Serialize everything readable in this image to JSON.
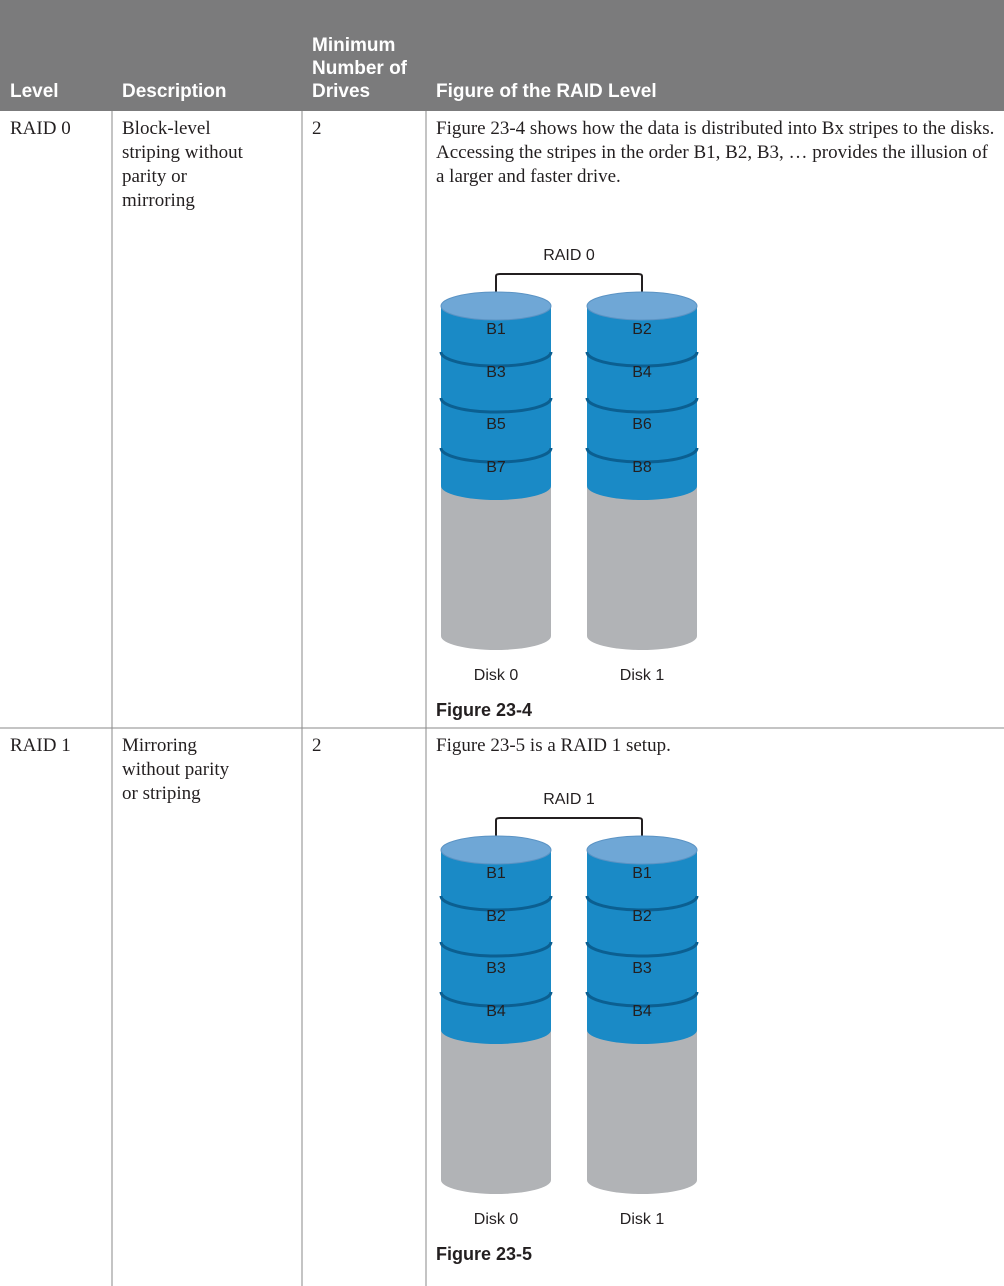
{
  "table": {
    "headers": [
      "Level",
      "Description",
      "Minimum Number of Drives",
      "Figure of the RAID Level"
    ],
    "rows": [
      {
        "level": "RAID 0",
        "description": [
          "Block-level",
          "striping without",
          "parity or",
          "mirroring"
        ],
        "drives": 2,
        "figure": {
          "text": "Figure 23-4 shows how the data is distributed into Bx stripes to the disks. Accessing the stripes in the order B1, B2, B3, … provides the illusion of a larger and faster drive.",
          "diagram_title": "RAID 0",
          "disks": [
            {
              "label": "Disk 0",
              "blocks": [
                "B1",
                "B3",
                "B5",
                "B7"
              ]
            },
            {
              "label": "Disk 1",
              "blocks": [
                "B2",
                "B4",
                "B6",
                "B8"
              ]
            }
          ],
          "caption": "Figure 23-4"
        }
      },
      {
        "level": "RAID 1",
        "description": [
          "Mirroring",
          "without parity",
          "or striping"
        ],
        "drives": 2,
        "figure": {
          "text": "Figure 23-5 is a RAID 1 setup.",
          "diagram_title": "RAID 1",
          "disks": [
            {
              "label": "Disk 0",
              "blocks": [
                "B1",
                "B2",
                "B3",
                "B4"
              ]
            },
            {
              "label": "Disk 1",
              "blocks": [
                "B1",
                "B2",
                "B3",
                "B4"
              ]
            }
          ],
          "caption": "Figure 23-5"
        }
      }
    ]
  }
}
